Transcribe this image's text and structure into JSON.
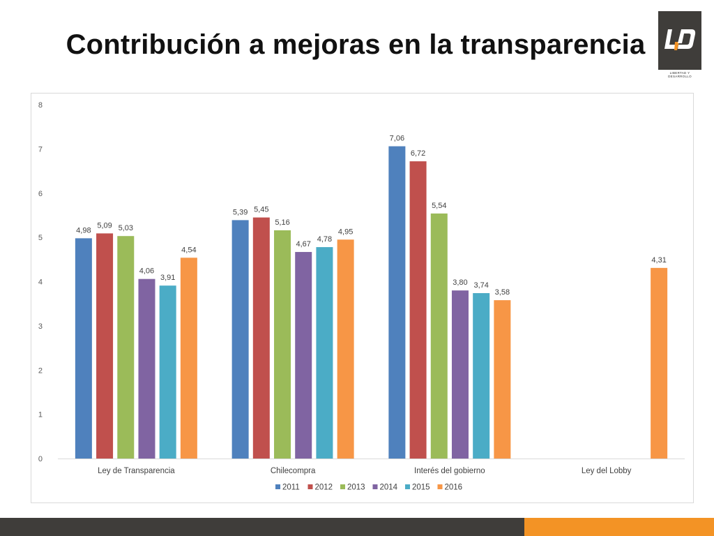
{
  "slide": {
    "title": "Contribución a mejoras en la transparencia",
    "logo_text": "LIBERTAD Y DESARROLLO",
    "colors": {
      "footer_dark": "#3f3d3a",
      "footer_orange": "#f39325",
      "logo_accent": "#f39325"
    }
  },
  "chart_data": {
    "type": "bar",
    "title": "",
    "xlabel": "",
    "ylabel": "",
    "ylim": [
      0,
      8
    ],
    "y_ticks": [
      0,
      1,
      2,
      3,
      4,
      5,
      6,
      7,
      8
    ],
    "grid": false,
    "legend_position": "bottom",
    "categories": [
      "Ley de Transparencia",
      "Chilecompra",
      "Interés del gobierno",
      "Ley del Lobby"
    ],
    "series": [
      {
        "name": "2011",
        "color": "#4f81bd",
        "values": [
          4.98,
          5.39,
          7.06,
          null
        ],
        "labels": [
          "4,98",
          "5,39",
          "7,06",
          ""
        ]
      },
      {
        "name": "2012",
        "color": "#c0504d",
        "values": [
          5.09,
          5.45,
          6.72,
          null
        ],
        "labels": [
          "5,09",
          "5,45",
          "6,72",
          ""
        ]
      },
      {
        "name": "2013",
        "color": "#9bbb59",
        "values": [
          5.03,
          5.16,
          5.54,
          null
        ],
        "labels": [
          "5,03",
          "5,16",
          "5,54",
          ""
        ]
      },
      {
        "name": "2014",
        "color": "#8064a2",
        "values": [
          4.06,
          4.67,
          3.8,
          null
        ],
        "labels": [
          "4,06",
          "4,67",
          "3,80",
          ""
        ]
      },
      {
        "name": "2015",
        "color": "#4bacc6",
        "values": [
          3.91,
          4.78,
          3.74,
          null
        ],
        "labels": [
          "3,91",
          "4,78",
          "3,74",
          ""
        ]
      },
      {
        "name": "2016",
        "color": "#f79646",
        "values": [
          4.54,
          4.95,
          3.58,
          4.31
        ],
        "labels": [
          "4,54",
          "4,95",
          "3,58",
          "4,31"
        ]
      }
    ]
  }
}
